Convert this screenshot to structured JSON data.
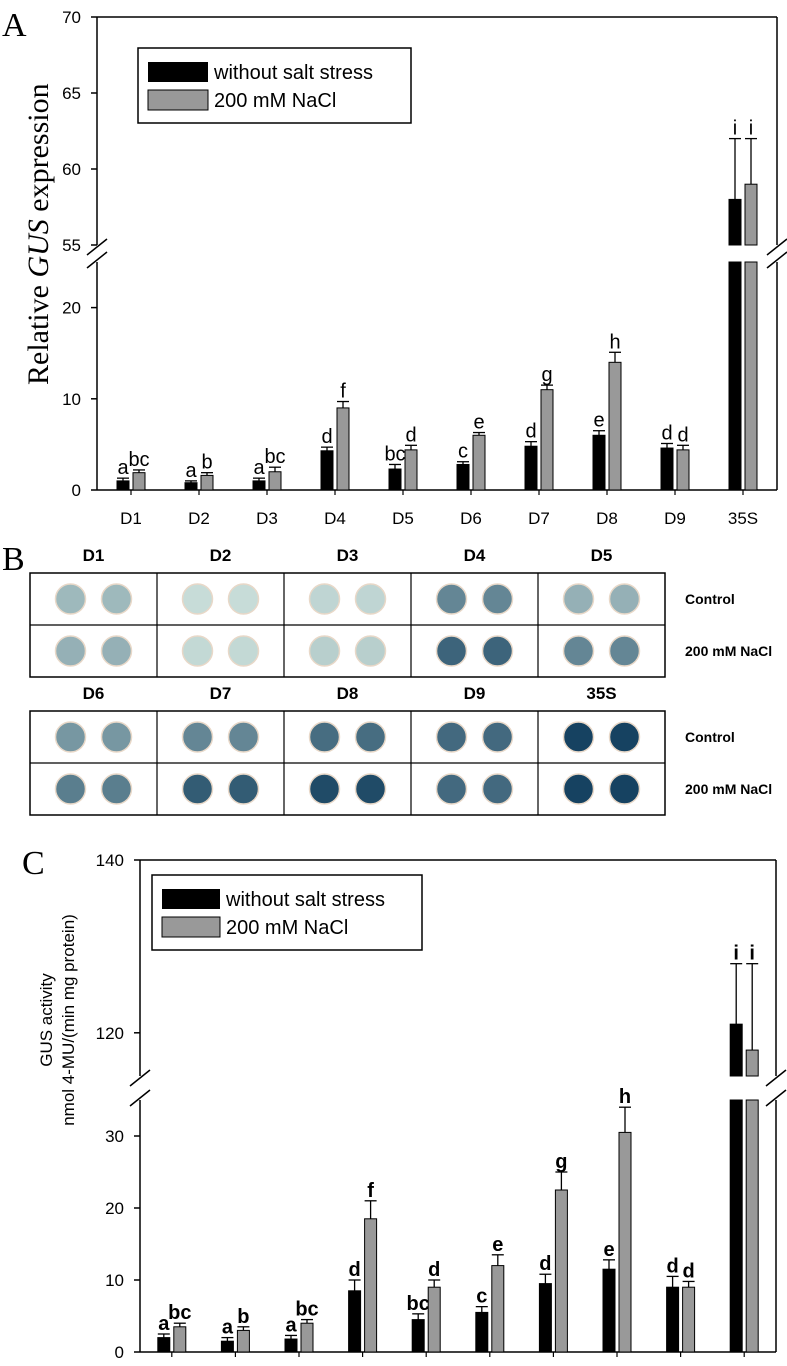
{
  "colors": {
    "bar_control": "#000000",
    "bar_salt": "#999999",
    "axis": "#000000",
    "stain_light": "#cfe3dd",
    "stain_dark": "#0c3a5a"
  },
  "categories": [
    "D1",
    "D2",
    "D3",
    "D4",
    "D5",
    "D6",
    "D7",
    "D8",
    "D9",
    "35S"
  ],
  "panel_a": {
    "letter": "A",
    "ylabel_pre": "Relative ",
    "ylabel_italic": "GUS",
    "ylabel_post": " expression",
    "legend": [
      "without salt stress",
      "200 mM NaCl"
    ],
    "yticks_low": [
      "0",
      "10",
      "20"
    ],
    "yticks_high": [
      "55",
      "60",
      "65",
      "70"
    ]
  },
  "panel_b": {
    "letter": "B",
    "row_labels": [
      "Control",
      "200 mM NaCl"
    ],
    "top_labels": [
      "D1",
      "D2",
      "D3",
      "D4",
      "D5"
    ],
    "bottom_labels": [
      "D6",
      "D7",
      "D8",
      "D9",
      "35S"
    ]
  },
  "panel_c": {
    "letter": "C",
    "ylabel_line1": "GUS activity",
    "ylabel_line2": "nmol 4-MU/(min mg protein)",
    "legend": [
      "without salt stress",
      "200 mM NaCl"
    ],
    "yticks_low": [
      "0",
      "10",
      "20",
      "30"
    ],
    "yticks_high": [
      "120",
      "140"
    ]
  },
  "chart_data": [
    {
      "type": "bar",
      "title": "A",
      "ylabel": "Relative GUS expression",
      "xlabel": "",
      "categories": [
        "D1",
        "D2",
        "D3",
        "D4",
        "D5",
        "D6",
        "D7",
        "D8",
        "D9",
        "35S"
      ],
      "axis_break": {
        "lower": [
          0,
          25
        ],
        "upper": [
          55,
          70
        ]
      },
      "series": [
        {
          "name": "without salt stress",
          "values": [
            1.0,
            0.8,
            1.0,
            4.3,
            2.3,
            2.8,
            4.8,
            6.0,
            4.6,
            58
          ],
          "errors": [
            0.3,
            0.2,
            0.3,
            0.4,
            0.5,
            0.3,
            0.5,
            0.5,
            0.5,
            4
          ],
          "letters": [
            "a",
            "a",
            "a",
            "d",
            "bc",
            "c",
            "d",
            "e",
            "d",
            "i"
          ]
        },
        {
          "name": "200 mM NaCl",
          "values": [
            1.9,
            1.6,
            2.0,
            9.0,
            4.4,
            6.0,
            11.0,
            14.0,
            4.4,
            59
          ],
          "errors": [
            0.3,
            0.3,
            0.5,
            0.7,
            0.5,
            0.3,
            0.5,
            1.1,
            0.5,
            3
          ],
          "letters": [
            "bc",
            "b",
            "bc",
            "f",
            "d",
            "e",
            "g",
            "h",
            "d",
            "i"
          ]
        }
      ]
    },
    {
      "type": "bar",
      "title": "C",
      "ylabel": "GUS activity nmol 4-MU/(min mg protein)",
      "xlabel": "",
      "categories": [
        "D1",
        "D2",
        "D3",
        "D4",
        "D5",
        "D6",
        "D7",
        "D8",
        "D9",
        "35S"
      ],
      "axis_break": {
        "lower": [
          0,
          35
        ],
        "upper": [
          115,
          140
        ]
      },
      "series": [
        {
          "name": "without salt stress",
          "values": [
            2.0,
            1.5,
            1.8,
            8.5,
            4.5,
            5.5,
            9.5,
            11.5,
            9.0,
            121
          ],
          "errors": [
            0.5,
            0.5,
            0.5,
            1.5,
            0.8,
            0.8,
            1.3,
            1.3,
            1.5,
            7
          ],
          "letters": [
            "a",
            "a",
            "a",
            "d",
            "bc",
            "c",
            "d",
            "e",
            "d",
            "i"
          ]
        },
        {
          "name": "200 mM NaCl",
          "values": [
            3.5,
            3.0,
            4.0,
            18.5,
            9.0,
            12.0,
            22.5,
            30.5,
            9.0,
            118
          ],
          "errors": [
            0.5,
            0.5,
            0.5,
            2.5,
            1.0,
            1.5,
            2.5,
            3.5,
            0.8,
            10
          ],
          "letters": [
            "bc",
            "b",
            "bc",
            "f",
            "d",
            "e",
            "g",
            "h",
            "d",
            "i"
          ]
        }
      ]
    }
  ],
  "plate_intensity": {
    "top_control": [
      0.25,
      0.04,
      0.08,
      0.55,
      0.3
    ],
    "top_salt": [
      0.3,
      0.06,
      0.12,
      0.75,
      0.55
    ],
    "bottom_control": [
      0.45,
      0.55,
      0.7,
      0.72,
      0.95
    ],
    "bottom_salt": [
      0.6,
      0.8,
      0.9,
      0.72,
      0.95
    ]
  }
}
